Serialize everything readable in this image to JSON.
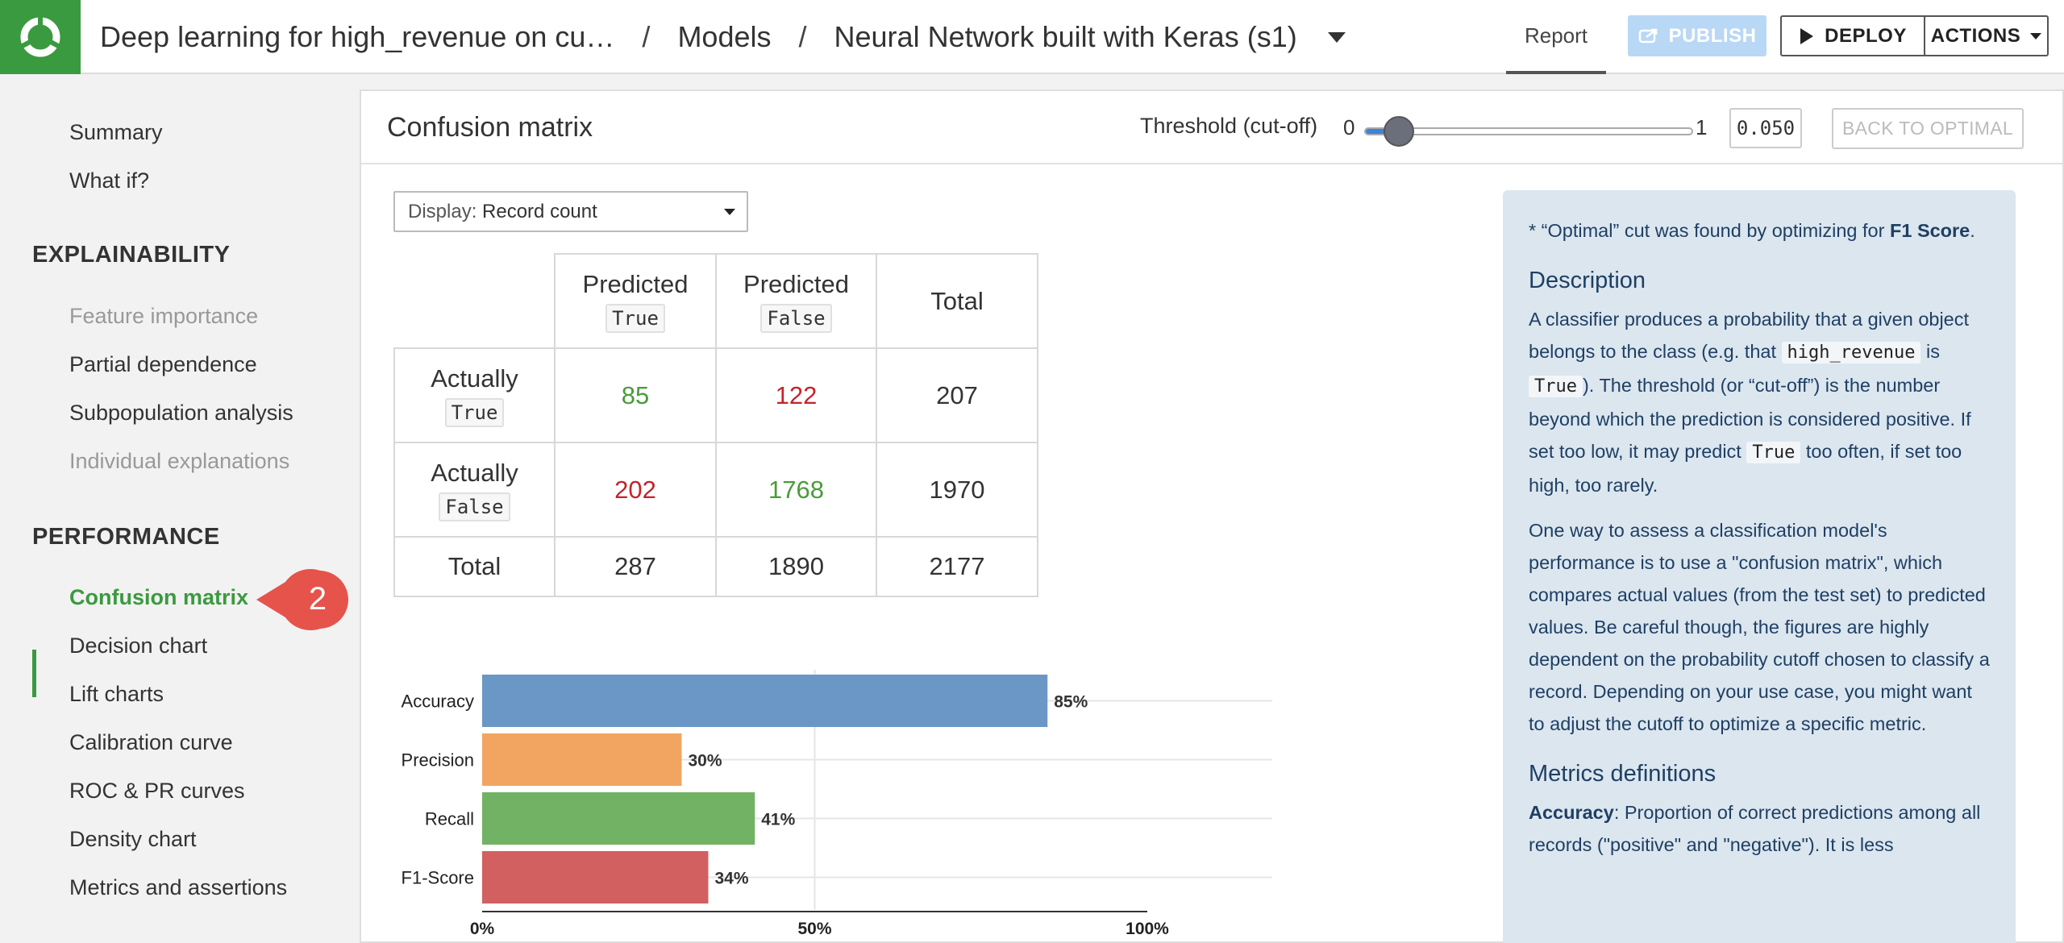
{
  "header": {
    "breadcrumb": [
      "Deep learning for high_revenue on cu…",
      "Models",
      "Neural Network built with Keras (s1)"
    ],
    "tab_report": "Report",
    "publish": "PUBLISH",
    "deploy": "DEPLOY",
    "actions": "ACTIONS"
  },
  "sidebar": {
    "top": [
      "Summary",
      "What if?"
    ],
    "explain_head": "EXPLAINABILITY",
    "explain": [
      "Feature importance",
      "Partial dependence",
      "Subpopulation analysis",
      "Individual explanations"
    ],
    "perf_head": "PERFORMANCE",
    "perf": [
      "Confusion matrix",
      "Decision chart",
      "Lift charts",
      "Calibration curve",
      "ROC & PR curves",
      "Density chart",
      "Metrics and assertions"
    ],
    "badge_number": "2"
  },
  "panel": {
    "title": "Confusion matrix",
    "threshold_label": "Threshold (cut-off)",
    "threshold_min": "0",
    "threshold_max": "1",
    "threshold_value": "0.050",
    "threshold_fraction": 0.05,
    "back_optimal": "BACK TO OPTIMAL",
    "display_prefix": "Display:",
    "display_value": "Record count"
  },
  "matrix": {
    "predicted": "Predicted",
    "actually": "Actually",
    "true_code": "True",
    "false_code": "False",
    "total": "Total",
    "rows": [
      [
        "85",
        "122",
        "207"
      ],
      [
        "202",
        "1768",
        "1970"
      ],
      [
        "287",
        "1890",
        "2177"
      ]
    ]
  },
  "chart_data": {
    "type": "bar",
    "orientation": "horizontal",
    "categories": [
      "Accuracy",
      "Precision",
      "Recall",
      "F1-Score"
    ],
    "values": [
      85,
      30,
      41,
      34
    ],
    "value_labels": [
      "85%",
      "30%",
      "41%",
      "34%"
    ],
    "tick_labels": [
      "0%",
      "50%",
      "100%"
    ],
    "xlim": [
      0,
      100
    ],
    "colors": [
      "#6a97c6",
      "#f2a560",
      "#72b264",
      "#d26060"
    ]
  },
  "info": {
    "note_pre": "* “Optimal” cut was found by optimizing for ",
    "note_bold": "F1 Score",
    "note_post": ".",
    "desc_head": "Description",
    "desc_1": "A classifier produces a probability that a given object belongs to the class (e.g. that ",
    "desc_code1": "high_revenue",
    "desc_2": " is ",
    "desc_code2": "True",
    "desc_3": "). The threshold (or “cut-off”) is the number beyond which the prediction is considered positive. If set too low, it may predict ",
    "desc_code3": "True",
    "desc_4": " too often, if set too high, too rarely.",
    "desc_p2": "One way to assess a classification model's performance is to use a \"confusion matrix\", which compares actual values (from the test set) to predicted values. Be careful though, the figures are highly dependent on the probability cutoff chosen to classify a record. Depending on your use case, you might want to adjust the cutoff to optimize a specific metric.",
    "metrics_head": "Metrics definitions",
    "acc_bold": "Accuracy",
    "acc_text": ": Proportion of correct predictions among all records (\"positive\" and \"negative\"). It is less"
  }
}
